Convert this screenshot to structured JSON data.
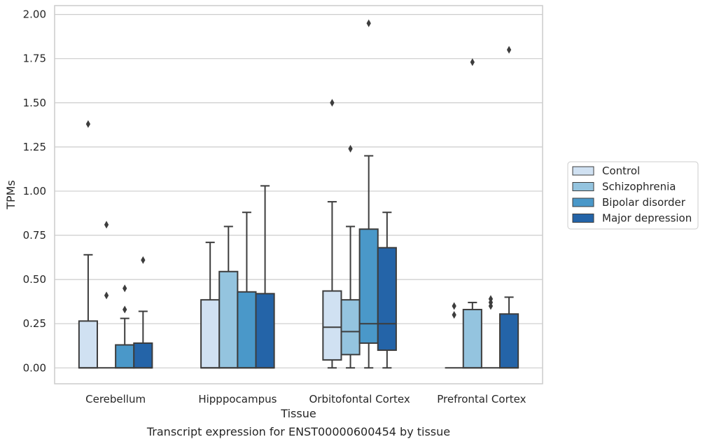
{
  "chart_data": {
    "type": "box",
    "title": "Transcript expression for ENST00000600454 by tissue",
    "xlabel": "Tissue",
    "ylabel": "TPMs",
    "ylim": [
      -0.09,
      2.05
    ],
    "yticks": [
      "0.00",
      "0.25",
      "0.50",
      "0.75",
      "1.00",
      "1.25",
      "1.50",
      "1.75",
      "2.00"
    ],
    "categories": [
      "Cerebellum",
      "Hipppocampus",
      "Orbitofontal Cortex",
      "Prefrontal Cortex"
    ],
    "grid": true,
    "legend_position": "right",
    "series": [
      {
        "name": "Control",
        "color": "#d0e1f2",
        "boxes": [
          {
            "q1": 0,
            "median": 0,
            "q3": 0.265,
            "whisker_low": 0,
            "whisker_high": 0.64,
            "outliers": [
              1.38
            ]
          },
          {
            "q1": 0,
            "median": 0,
            "q3": 0.385,
            "whisker_low": 0,
            "whisker_high": 0.71,
            "outliers": []
          },
          {
            "q1": 0.045,
            "median": 0.23,
            "q3": 0.435,
            "whisker_low": 0,
            "whisker_high": 0.94,
            "outliers": [
              1.5
            ]
          },
          {
            "q1": 0,
            "median": 0,
            "q3": 0,
            "whisker_low": 0,
            "whisker_high": 0,
            "outliers": [
              0.3,
              0.35
            ]
          }
        ]
      },
      {
        "name": "Schizophrenia",
        "color": "#94c4df",
        "boxes": [
          {
            "q1": 0,
            "median": 0,
            "q3": 0,
            "whisker_low": 0,
            "whisker_high": 0,
            "outliers": [
              0.41,
              0.81
            ]
          },
          {
            "q1": 0,
            "median": 0,
            "q3": 0.545,
            "whisker_low": 0,
            "whisker_high": 0.8,
            "outliers": []
          },
          {
            "q1": 0.075,
            "median": 0.205,
            "q3": 0.385,
            "whisker_low": 0,
            "whisker_high": 0.8,
            "outliers": [
              1.24
            ]
          },
          {
            "q1": 0,
            "median": 0,
            "q3": 0.33,
            "whisker_low": 0,
            "whisker_high": 0.37,
            "outliers": [
              1.73
            ]
          }
        ]
      },
      {
        "name": "Bipolar disorder",
        "color": "#4a98c9",
        "boxes": [
          {
            "q1": 0,
            "median": 0,
            "q3": 0.13,
            "whisker_low": 0,
            "whisker_high": 0.28,
            "outliers": [
              0.33,
              0.45
            ]
          },
          {
            "q1": 0,
            "median": 0,
            "q3": 0.43,
            "whisker_low": 0,
            "whisker_high": 0.88,
            "outliers": []
          },
          {
            "q1": 0.14,
            "median": 0.25,
            "q3": 0.785,
            "whisker_low": 0,
            "whisker_high": 1.2,
            "outliers": [
              1.95
            ]
          },
          {
            "q1": 0,
            "median": 0,
            "q3": 0,
            "whisker_low": 0,
            "whisker_high": 0,
            "outliers": [
              0.35,
              0.37,
              0.39
            ]
          }
        ]
      },
      {
        "name": "Major depression",
        "color": "#2464a8",
        "boxes": [
          {
            "q1": 0,
            "median": 0,
            "q3": 0.14,
            "whisker_low": 0,
            "whisker_high": 0.32,
            "outliers": [
              0.61
            ]
          },
          {
            "q1": 0,
            "median": 0,
            "q3": 0.42,
            "whisker_low": 0,
            "whisker_high": 1.03,
            "outliers": []
          },
          {
            "q1": 0.1,
            "median": 0.25,
            "q3": 0.68,
            "whisker_low": 0,
            "whisker_high": 0.88,
            "outliers": []
          },
          {
            "q1": 0,
            "median": 0,
            "q3": 0.305,
            "whisker_low": 0,
            "whisker_high": 0.4,
            "outliers": [
              1.8
            ]
          }
        ]
      }
    ]
  }
}
